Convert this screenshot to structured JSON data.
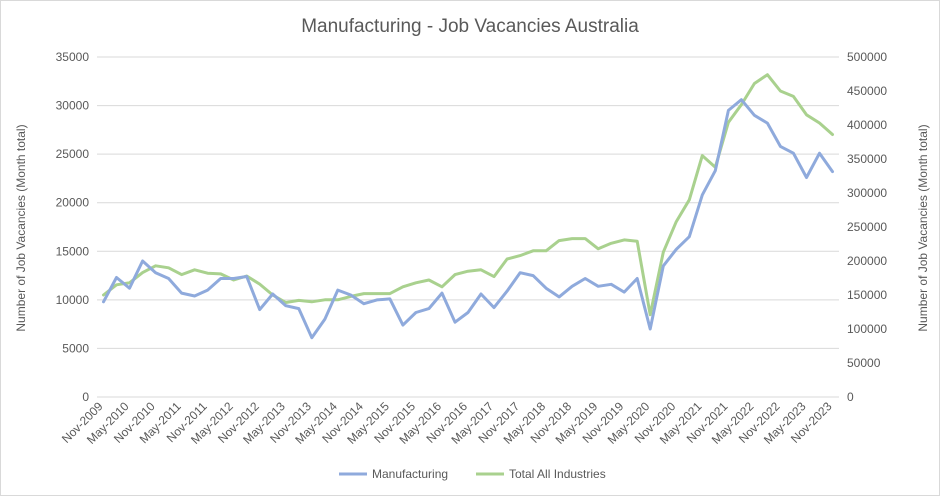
{
  "chart_data": {
    "type": "line",
    "title": "Manufacturing - Job Vacancies Australia",
    "y_left_label": "Number of Job Vacancies (Month total)",
    "y_right_label": "Number of Job Vacancies (Month total)",
    "y_left_range": [
      0,
      35000
    ],
    "y_left_ticks": [
      "0",
      "5000",
      "10000",
      "15000",
      "20000",
      "25000",
      "30000",
      "35000"
    ],
    "y_right_range": [
      0,
      500000
    ],
    "y_right_ticks": [
      "0",
      "50000",
      "100000",
      "150000",
      "200000",
      "250000",
      "300000",
      "350000",
      "400000",
      "450000",
      "500000"
    ],
    "grid": true,
    "legend_position": "bottom",
    "x_tick_labels": [
      "Nov-2009",
      "May-2010",
      "Nov-2010",
      "May-2011",
      "Nov-2011",
      "May-2012",
      "Nov-2012",
      "May-2013",
      "Nov-2013",
      "May-2014",
      "Nov-2014",
      "May-2015",
      "Nov-2015",
      "May-2016",
      "Nov-2016",
      "May-2017",
      "Nov-2017",
      "May-2018",
      "Nov-2018",
      "May-2019",
      "Nov-2019",
      "May-2020",
      "Nov-2020",
      "May-2021",
      "Nov-2021",
      "May-2022",
      "Nov-2022",
      "May-2023",
      "Nov-2023"
    ],
    "series": [
      {
        "name": "Manufacturing",
        "axis": "left",
        "color": "#8faadc",
        "values": [
          9800,
          12300,
          11200,
          14000,
          12800,
          12200,
          10700,
          10400,
          11000,
          12200,
          12200,
          12400,
          9000,
          10600,
          9400,
          9100,
          6100,
          8000,
          11000,
          10500,
          9600,
          10000,
          10100,
          7400,
          8700,
          9100,
          10700,
          7700,
          8700,
          10600,
          9200,
          10900,
          12800,
          12500,
          11200,
          10300,
          11400,
          12200,
          11400,
          11600,
          10800,
          12200,
          7000,
          13500,
          15200,
          16500,
          20800,
          23300,
          29500,
          30600,
          29000,
          28200,
          25800,
          25100,
          22600,
          25100,
          23200
        ]
      },
      {
        "name": "Total All Industries",
        "axis": "right",
        "color": "#a9d18e",
        "values": [
          150000,
          165000,
          168000,
          183000,
          193000,
          190000,
          180000,
          187000,
          182000,
          181000,
          172000,
          178000,
          166000,
          150000,
          139000,
          142000,
          140000,
          143000,
          143000,
          148000,
          152000,
          152000,
          152000,
          162000,
          168000,
          172000,
          162000,
          180000,
          185000,
          187000,
          177000,
          203000,
          208000,
          215000,
          215000,
          230000,
          233000,
          233000,
          218000,
          226000,
          231000,
          229000,
          121000,
          213000,
          258000,
          290000,
          355000,
          338000,
          404000,
          430000,
          461000,
          474000,
          450000,
          442000,
          415000,
          403000,
          386000
        ]
      }
    ]
  }
}
